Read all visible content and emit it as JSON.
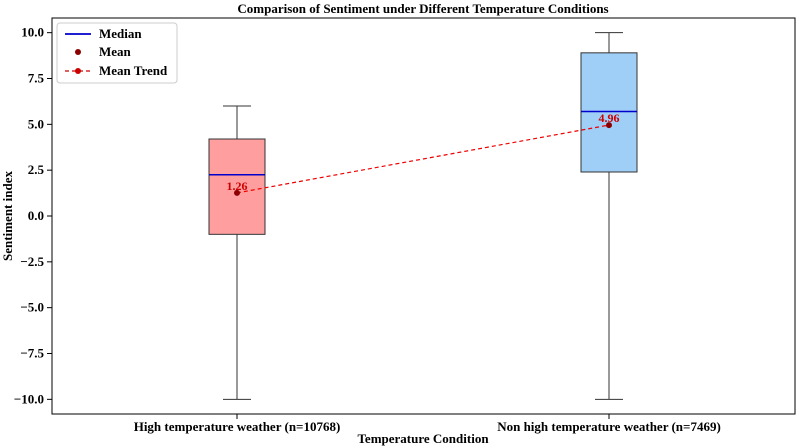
{
  "chart_data": {
    "type": "box",
    "title": "Comparison of Sentiment under Different Temperature Conditions",
    "xlabel": "Temperature Condition",
    "ylabel": "Sentiment index",
    "ylim": [
      -10.8,
      10.8
    ],
    "yticks": [
      10.0,
      7.5,
      5.0,
      2.5,
      0.0,
      -2.5,
      -5.0,
      -7.5,
      -10.0
    ],
    "ytick_labels": [
      "10.0",
      "7.5",
      "5.0",
      "2.5",
      "0.0",
      "−2.5",
      "−5.0",
      "−7.5",
      "−10.0"
    ],
    "categories": [
      "High temperature weather (n=10768)",
      "Non high temperature weather (n=7469)"
    ],
    "boxes": [
      {
        "whisker_low": -10.0,
        "q1": -1.0,
        "median": 2.25,
        "q3": 4.2,
        "whisker_high": 6.0,
        "mean": 1.26,
        "mean_label": "1.26",
        "fill": "#ff9e9e"
      },
      {
        "whisker_low": -10.0,
        "q1": 2.4,
        "median": 5.7,
        "q3": 8.9,
        "whisker_high": 10.0,
        "mean": 4.96,
        "mean_label": "4.96",
        "fill": "#9fcef7"
      }
    ],
    "legend": {
      "placement": "top-left",
      "items": [
        {
          "label": "Median",
          "kind": "line",
          "color": "#0000cc"
        },
        {
          "label": "Mean",
          "kind": "marker",
          "color": "#8b0000"
        },
        {
          "label": "Mean Trend",
          "kind": "dashed-line-marker",
          "color": "#cc0000"
        }
      ]
    },
    "colors": {
      "median": "#0000cc",
      "mean": "#8b0000",
      "trend": "#ee0000",
      "mean_label": "#cc0000"
    },
    "grid": false
  }
}
